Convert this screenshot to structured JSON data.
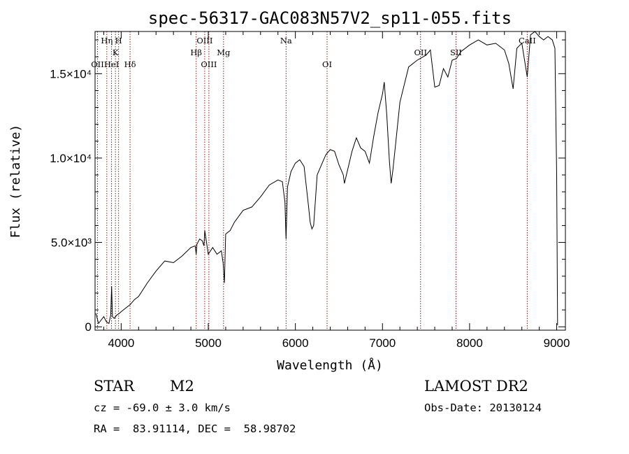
{
  "chart_data": {
    "type": "line",
    "title": "spec-56317-GAC083N57V2_sp11-055.fits",
    "xlabel": "Wavelength (Å)",
    "ylabel": "Flux (relative)",
    "xlim": [
      3700,
      9100
    ],
    "ylim": [
      -200,
      17500
    ],
    "x_ticks": [
      {
        "value": 4000,
        "label": "4000"
      },
      {
        "value": 5000,
        "label": "5000"
      },
      {
        "value": 6000,
        "label": "6000"
      },
      {
        "value": 7000,
        "label": "7000"
      },
      {
        "value": 8000,
        "label": "8000"
      },
      {
        "value": 9000,
        "label": "9000"
      }
    ],
    "y_ticks": [
      {
        "value": 0,
        "label": "0"
      },
      {
        "value": 5000,
        "label": "5.0×10³"
      },
      {
        "value": 10000,
        "label": "1.0×10⁴"
      },
      {
        "value": 15000,
        "label": "1.5×10⁴"
      }
    ],
    "series": [
      {
        "x": [
          3710,
          3740,
          3770,
          3800,
          3830,
          3860,
          3880,
          3890,
          3900,
          3920,
          3950,
          3980,
          4000,
          4050,
          4100,
          4150,
          4200,
          4300,
          4400,
          4500,
          4600,
          4700,
          4800,
          4850,
          4861,
          4870,
          4900,
          4930,
          4950,
          4960,
          5000,
          5050,
          5100,
          5150,
          5170,
          5185,
          5200,
          5250,
          5300,
          5400,
          5500,
          5600,
          5700,
          5800,
          5850,
          5880,
          5893,
          5910,
          5950,
          6000,
          6050,
          6100,
          6150,
          6170,
          6190,
          6210,
          6250,
          6300,
          6350,
          6400,
          6450,
          6500,
          6550,
          6563,
          6600,
          6650,
          6700,
          6750,
          6800,
          6850,
          6900,
          6950,
          7000,
          7020,
          7050,
          7080,
          7100,
          7120,
          7150,
          7200,
          7300,
          7400,
          7500,
          7550,
          7600,
          7650,
          7700,
          7750,
          7800,
          7850,
          7900,
          8000,
          8100,
          8200,
          8300,
          8400,
          8450,
          8500,
          8542,
          8560,
          8600,
          8662,
          8700,
          8750,
          8800,
          8850,
          8900,
          8950,
          8980,
          9000,
          9010
        ],
        "y": [
          800,
          200,
          400,
          600,
          300,
          200,
          700,
          2400,
          600,
          500,
          700,
          800,
          900,
          1100,
          1300,
          1600,
          1800,
          2600,
          3300,
          3900,
          3800,
          4200,
          4700,
          4800,
          4300,
          4900,
          5200,
          5100,
          4800,
          5700,
          4300,
          4700,
          4300,
          4500,
          3800,
          2600,
          5500,
          5700,
          6200,
          6900,
          7100,
          7700,
          8400,
          8700,
          8600,
          7400,
          5200,
          8300,
          9200,
          9700,
          9900,
          9500,
          7200,
          6200,
          5800,
          6000,
          9000,
          9600,
          10200,
          10500,
          10400,
          9600,
          9000,
          8500,
          9300,
          10400,
          11200,
          10600,
          10400,
          9700,
          11300,
          12700,
          13800,
          14500,
          12500,
          9800,
          8500,
          9300,
          10800,
          13300,
          15400,
          15800,
          16100,
          16400,
          14200,
          14300,
          15300,
          14800,
          15800,
          15900,
          16300,
          16700,
          17000,
          16700,
          16800,
          16400,
          15600,
          14100,
          16500,
          16600,
          16800,
          14800,
          17300,
          17500,
          17200,
          17000,
          17200,
          17000,
          16500,
          9000,
          100
        ]
      }
    ],
    "line_markers": [
      {
        "x": 3728,
        "label": "OII",
        "row": 2
      },
      {
        "x": 3835,
        "label": "Hη",
        "row": 0
      },
      {
        "x": 3889,
        "label": "HeI",
        "row": 2
      },
      {
        "x": 3934,
        "label": "K",
        "row": 1
      },
      {
        "x": 3970,
        "label": "H",
        "row": 0
      },
      {
        "x": 4102,
        "label": "Hδ",
        "row": 2
      },
      {
        "x": 4861,
        "label": "Hβ",
        "row": 1
      },
      {
        "x": 4959,
        "label": "OIII",
        "row": 0
      },
      {
        "x": 5007,
        "label": "OIII",
        "row": 2
      },
      {
        "x": 5175,
        "label": "Mg",
        "row": 1
      },
      {
        "x": 5893,
        "label": "Na",
        "row": 0
      },
      {
        "x": 6364,
        "label": "OI",
        "row": 2
      },
      {
        "x": 7437,
        "label": "OII",
        "row": 1
      },
      {
        "x": 7844,
        "label": "SII",
        "row": 1
      },
      {
        "x": 8662,
        "label": "CaII",
        "row": 0
      }
    ]
  },
  "footer": {
    "object_class": "STAR",
    "subclass": "M2",
    "survey": "LAMOST DR2",
    "redshift": "cz = -69.0 ± 3.0 km/s",
    "obs_date": "Obs-Date: 20130124",
    "coordinates": "RA =  83.91114, DEC =  58.98702"
  }
}
